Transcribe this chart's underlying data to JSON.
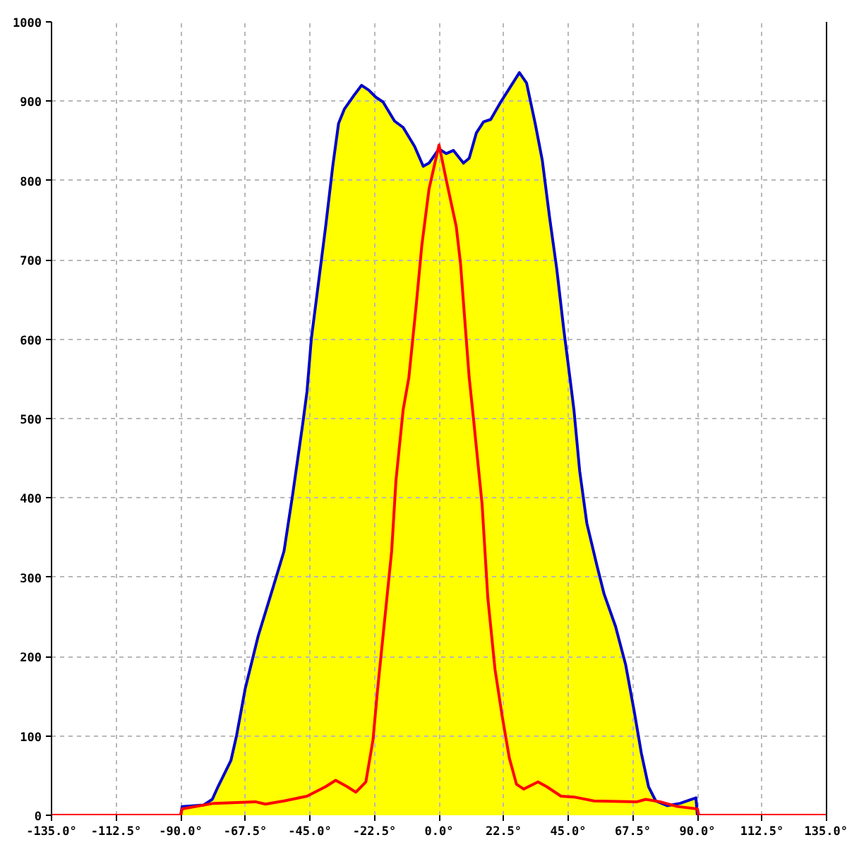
{
  "chart_data": {
    "type": "area",
    "xlim": [
      -135,
      135
    ],
    "ylim": [
      0,
      1000
    ],
    "xticks": [
      {
        "value": -135,
        "label": "-135.0°"
      },
      {
        "value": -112.5,
        "label": "-112.5°"
      },
      {
        "value": -90,
        "label": "-90.0°"
      },
      {
        "value": -67.5,
        "label": "-67.5°"
      },
      {
        "value": -45,
        "label": "-45.0°"
      },
      {
        "value": -22.5,
        "label": "-22.5°"
      },
      {
        "value": 0,
        "label": "0.0°"
      },
      {
        "value": 22.5,
        "label": "22.5°"
      },
      {
        "value": 45,
        "label": "45.0°"
      },
      {
        "value": 67.5,
        "label": "67.5°"
      },
      {
        "value": 90,
        "label": "90.0°"
      },
      {
        "value": 112.5,
        "label": "112.5°"
      },
      {
        "value": 135,
        "label": "135.0°"
      }
    ],
    "yticks": [
      0,
      100,
      200,
      300,
      400,
      500,
      600,
      700,
      800,
      900,
      1000
    ],
    "grid": true,
    "series": [
      {
        "color": "#ffff00",
        "x": [
          -90,
          -89.5,
          -82,
          -79,
          -77,
          -72.5,
          -70.5,
          -67.5,
          -63,
          -58,
          -54,
          -51,
          -47.5,
          -46,
          -44.5,
          -42,
          -39.5,
          -37,
          -35,
          -33,
          -29.5,
          -27,
          -24.5,
          -22,
          -19.5,
          -15.5,
          -12.5,
          -8.5,
          -5.5,
          -3.5,
          0,
          2.5,
          5,
          8.5,
          10.5,
          13,
          15.5,
          18,
          21.5,
          24.5,
          28,
          30.5,
          33.5,
          36,
          38.5,
          41,
          43.5,
          46,
          47,
          49,
          51.5,
          55,
          57.5,
          61.5,
          65,
          68,
          70.5,
          73,
          75.5,
          79.5,
          84,
          89.5,
          90
        ],
        "values": [
          0,
          11,
          13,
          20,
          36,
          69,
          101,
          160,
          226,
          285,
          333,
          404,
          493,
          534,
          600,
          671,
          742,
          819,
          872,
          890,
          908,
          920,
          914,
          905,
          899,
          875,
          867,
          843,
          818,
          822,
          840,
          834,
          838,
          822,
          828,
          860,
          874,
          877,
          899,
          916,
          936,
          923,
          872,
          825,
          754,
          689,
          611,
          540,
          511,
          434,
          368,
          315,
          279,
          238,
          190,
          131,
          78,
          36,
          18,
          12,
          15,
          22,
          0
        ]
      },
      {
        "type": "line",
        "color": "#ff0000",
        "x": [
          -135,
          -90,
          -89.5,
          -78.5,
          -64,
          -60.5,
          -54,
          -46,
          -39.5,
          -36,
          -32,
          -29,
          -25.5,
          -23,
          -21.5,
          -19,
          -16.5,
          -15,
          -12.5,
          -10.5,
          -8,
          -6,
          -3.5,
          0,
          2.5,
          6,
          7.5,
          9,
          10.5,
          12,
          15,
          17,
          19.5,
          22,
          24.5,
          27,
          29.5,
          34.5,
          37.5,
          42.5,
          47,
          54,
          69,
          72,
          77,
          83,
          90,
          90.5,
          135
        ],
        "values": [
          0,
          0,
          8,
          15,
          17,
          14,
          18,
          24,
          36,
          44,
          36,
          29,
          42,
          95,
          155,
          244,
          333,
          422,
          511,
          552,
          641,
          718,
          789,
          845,
          801,
          742,
          695,
          623,
          552,
          500,
          392,
          274,
          184,
          125,
          72,
          39,
          33,
          42,
          36,
          24,
          23,
          18,
          17,
          20,
          17,
          11,
          8,
          0,
          0
        ]
      }
    ]
  }
}
